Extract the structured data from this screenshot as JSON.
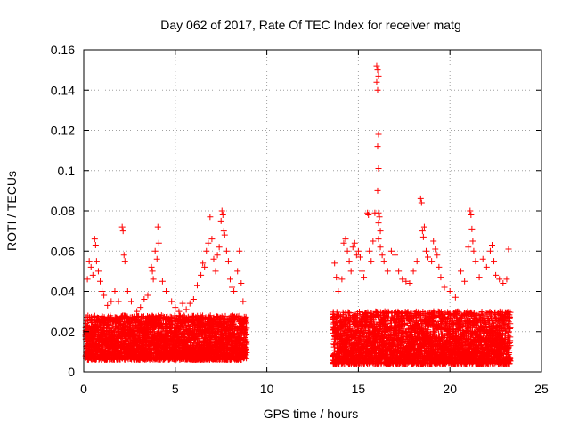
{
  "chart_data": {
    "type": "scatter",
    "title": "Day 062 of 2017, Rate Of TEC Index for receiver matg",
    "xlabel": "GPS time / hours",
    "ylabel": "ROTI / TECUs",
    "xlim": [
      0,
      25
    ],
    "ylim": [
      0,
      0.16
    ],
    "xticks": [
      0,
      5,
      10,
      15,
      20,
      25
    ],
    "xtick_labels": [
      "0",
      "5",
      "10",
      "15",
      "20",
      "25"
    ],
    "yticks": [
      0,
      0.02,
      0.04,
      0.06,
      0.08,
      0.1,
      0.12,
      0.14,
      0.16
    ],
    "ytick_labels": [
      "0",
      "0.02",
      "0.04",
      "0.06",
      "0.08",
      "0.1",
      "0.12",
      "0.14",
      "0.16"
    ],
    "grid": true,
    "marker": "+",
    "color": "#ff0000",
    "series": [
      {
        "name": "ROTI",
        "segments": [
          {
            "x_start": 0.1,
            "x_end": 8.9,
            "base_low": 0.006,
            "base_high": 0.028
          },
          {
            "x_start": 13.6,
            "x_end": 23.3,
            "base_low": 0.004,
            "base_high": 0.03
          }
        ],
        "points": [
          [
            0.2,
            0.046
          ],
          [
            0.3,
            0.055
          ],
          [
            0.4,
            0.052
          ],
          [
            0.5,
            0.048
          ],
          [
            0.6,
            0.066
          ],
          [
            0.65,
            0.063
          ],
          [
            0.7,
            0.055
          ],
          [
            0.8,
            0.05
          ],
          [
            0.9,
            0.045
          ],
          [
            1.0,
            0.04
          ],
          [
            1.1,
            0.038
          ],
          [
            1.3,
            0.033
          ],
          [
            1.5,
            0.035
          ],
          [
            1.7,
            0.04
          ],
          [
            1.9,
            0.035
          ],
          [
            2.1,
            0.072
          ],
          [
            2.15,
            0.07
          ],
          [
            2.2,
            0.058
          ],
          [
            2.25,
            0.055
          ],
          [
            2.4,
            0.04
          ],
          [
            2.6,
            0.035
          ],
          [
            2.9,
            0.03
          ],
          [
            3.1,
            0.032
          ],
          [
            3.3,
            0.036
          ],
          [
            3.5,
            0.038
          ],
          [
            3.7,
            0.052
          ],
          [
            3.75,
            0.05
          ],
          [
            3.8,
            0.046
          ],
          [
            3.9,
            0.06
          ],
          [
            4.0,
            0.056
          ],
          [
            4.05,
            0.072
          ],
          [
            4.1,
            0.064
          ],
          [
            4.3,
            0.045
          ],
          [
            4.5,
            0.04
          ],
          [
            4.8,
            0.035
          ],
          [
            5.0,
            0.032
          ],
          [
            5.2,
            0.03
          ],
          [
            5.4,
            0.034
          ],
          [
            5.6,
            0.031
          ],
          [
            5.8,
            0.034
          ],
          [
            6.0,
            0.036
          ],
          [
            6.2,
            0.043
          ],
          [
            6.4,
            0.048
          ],
          [
            6.5,
            0.054
          ],
          [
            6.6,
            0.052
          ],
          [
            6.7,
            0.06
          ],
          [
            6.8,
            0.064
          ],
          [
            6.9,
            0.077
          ],
          [
            7.0,
            0.066
          ],
          [
            7.1,
            0.056
          ],
          [
            7.2,
            0.05
          ],
          [
            7.3,
            0.058
          ],
          [
            7.4,
            0.062
          ],
          [
            7.5,
            0.075
          ],
          [
            7.55,
            0.08
          ],
          [
            7.6,
            0.078
          ],
          [
            7.65,
            0.07
          ],
          [
            7.7,
            0.068
          ],
          [
            7.8,
            0.06
          ],
          [
            7.9,
            0.055
          ],
          [
            8.0,
            0.046
          ],
          [
            8.1,
            0.042
          ],
          [
            8.2,
            0.04
          ],
          [
            8.4,
            0.05
          ],
          [
            8.5,
            0.06
          ],
          [
            8.6,
            0.044
          ],
          [
            8.7,
            0.035
          ],
          [
            13.7,
            0.054
          ],
          [
            13.8,
            0.047
          ],
          [
            13.9,
            0.04
          ],
          [
            14.1,
            0.046
          ],
          [
            14.2,
            0.064
          ],
          [
            14.3,
            0.066
          ],
          [
            14.4,
            0.06
          ],
          [
            14.5,
            0.055
          ],
          [
            14.6,
            0.05
          ],
          [
            14.7,
            0.062
          ],
          [
            14.8,
            0.064
          ],
          [
            14.9,
            0.058
          ],
          [
            15.0,
            0.06
          ],
          [
            15.1,
            0.057
          ],
          [
            15.2,
            0.05
          ],
          [
            15.3,
            0.047
          ],
          [
            15.5,
            0.079
          ],
          [
            15.55,
            0.078
          ],
          [
            15.6,
            0.06
          ],
          [
            15.7,
            0.055
          ],
          [
            15.8,
            0.065
          ],
          [
            15.9,
            0.079
          ],
          [
            16.0,
            0.152
          ],
          [
            16.05,
            0.15
          ],
          [
            16.1,
            0.147
          ],
          [
            16.0,
            0.144
          ],
          [
            16.05,
            0.14
          ],
          [
            16.1,
            0.118
          ],
          [
            16.05,
            0.112
          ],
          [
            16.1,
            0.101
          ],
          [
            16.05,
            0.09
          ],
          [
            16.1,
            0.079
          ],
          [
            16.15,
            0.077
          ],
          [
            16.1,
            0.074
          ],
          [
            16.2,
            0.07
          ],
          [
            16.1,
            0.066
          ],
          [
            16.2,
            0.062
          ],
          [
            16.3,
            0.058
          ],
          [
            16.4,
            0.055
          ],
          [
            16.6,
            0.05
          ],
          [
            16.8,
            0.06
          ],
          [
            17.0,
            0.058
          ],
          [
            17.2,
            0.05
          ],
          [
            17.4,
            0.046
          ],
          [
            17.6,
            0.045
          ],
          [
            17.8,
            0.044
          ],
          [
            18.0,
            0.05
          ],
          [
            18.2,
            0.055
          ],
          [
            18.4,
            0.086
          ],
          [
            18.45,
            0.084
          ],
          [
            18.5,
            0.07
          ],
          [
            18.55,
            0.067
          ],
          [
            18.6,
            0.072
          ],
          [
            18.7,
            0.06
          ],
          [
            18.8,
            0.057
          ],
          [
            19.0,
            0.055
          ],
          [
            19.1,
            0.065
          ],
          [
            19.2,
            0.061
          ],
          [
            19.3,
            0.058
          ],
          [
            19.4,
            0.052
          ],
          [
            19.5,
            0.047
          ],
          [
            19.7,
            0.042
          ],
          [
            20.0,
            0.04
          ],
          [
            20.3,
            0.037
          ],
          [
            20.6,
            0.05
          ],
          [
            20.8,
            0.045
          ],
          [
            21.0,
            0.062
          ],
          [
            21.1,
            0.08
          ],
          [
            21.15,
            0.078
          ],
          [
            21.2,
            0.071
          ],
          [
            21.25,
            0.065
          ],
          [
            21.3,
            0.06
          ],
          [
            21.4,
            0.055
          ],
          [
            21.6,
            0.047
          ],
          [
            21.8,
            0.056
          ],
          [
            22.0,
            0.052
          ],
          [
            22.2,
            0.06
          ],
          [
            22.3,
            0.063
          ],
          [
            22.4,
            0.055
          ],
          [
            22.5,
            0.048
          ],
          [
            22.7,
            0.046
          ],
          [
            22.9,
            0.044
          ],
          [
            23.1,
            0.046
          ],
          [
            23.2,
            0.061
          ]
        ]
      }
    ]
  }
}
